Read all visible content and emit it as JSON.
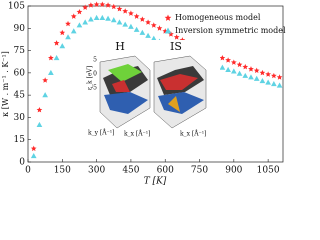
{
  "chart_data": {
    "type": "scatter",
    "x_label": "T [K]",
    "y_label": "κ [W . m⁻¹ . K⁻¹]",
    "xlim": [
      0,
      1115
    ],
    "xticks": [
      0,
      150,
      300,
      450,
      600,
      750,
      900,
      1050
    ],
    "ylim": [
      0,
      105
    ],
    "yticks": [
      0,
      15,
      30,
      45,
      60,
      75,
      90,
      105
    ],
    "legend": "upper right",
    "x": [
      25,
      50,
      75,
      100,
      125,
      150,
      175,
      200,
      225,
      250,
      275,
      300,
      325,
      350,
      375,
      400,
      425,
      450,
      475,
      500,
      525,
      550,
      575,
      600,
      625,
      650,
      675,
      700,
      725,
      750,
      775,
      800,
      825,
      850,
      875,
      900,
      925,
      950,
      975,
      1000,
      1025,
      1050,
      1075,
      1100
    ],
    "series": [
      {
        "name": "Homogeneous model",
        "color": "#ff2a2a",
        "marker": "star",
        "values": [
          9,
          35,
          55,
          70,
          80,
          87,
          93,
          98,
          101,
          104,
          105.5,
          106,
          106,
          105.5,
          104.5,
          103,
          101.5,
          100,
          98,
          96,
          94,
          92,
          90,
          88,
          86,
          84,
          82,
          80,
          78,
          76.5,
          75,
          73,
          71.5,
          70,
          68.5,
          67,
          65.5,
          64,
          62.5,
          61.5,
          60,
          59,
          58,
          57
        ]
      },
      {
        "name": "Inversion symmetric model",
        "color": "#5fd3e3",
        "marker": "triangle",
        "values": [
          4,
          25,
          45,
          60,
          70,
          78,
          84,
          88,
          92,
          94,
          96,
          97,
          97,
          96.5,
          95.5,
          94,
          92.5,
          91,
          89,
          87,
          85,
          83,
          81,
          79.5,
          77.5,
          76,
          74,
          72.5,
          71,
          69.5,
          68,
          66.5,
          65,
          63.5,
          62,
          61,
          59.5,
          58,
          57,
          56,
          54.5,
          53.5,
          52.5,
          51.5
        ]
      }
    ],
    "inset": {
      "panels": [
        "H",
        "IS"
      ],
      "z_label": "ε_k [eV]",
      "z_ticks": [
        "5",
        "0",
        "-5"
      ],
      "ky_label": "k_y [Å⁻¹]",
      "kx_label": "k_x [Å⁻¹]"
    }
  }
}
